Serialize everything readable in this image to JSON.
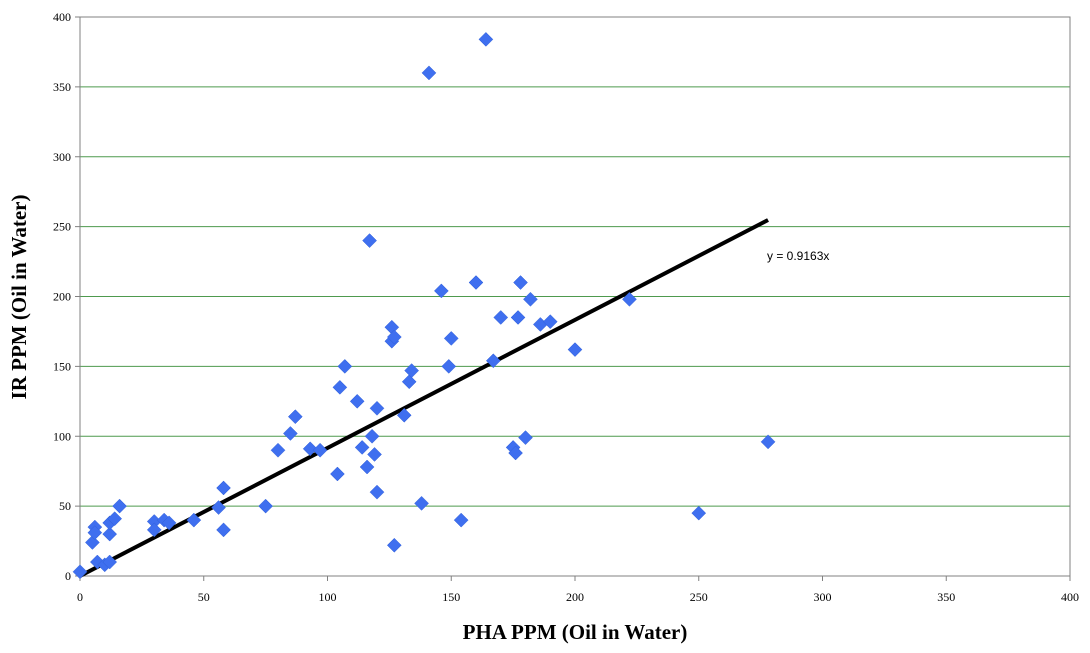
{
  "chart_data": {
    "type": "scatter",
    "title": "",
    "xlabel": "PHA PPM (Oil in Water)",
    "ylabel": "IR PPM (Oil in Water)",
    "xlim": [
      0,
      400
    ],
    "ylim": [
      0,
      400
    ],
    "x_ticks": [
      "0",
      "50",
      "100",
      "150",
      "200",
      "250",
      "300",
      "350",
      "400"
    ],
    "y_ticks": [
      "0",
      "50",
      "100",
      "150",
      "200",
      "250",
      "300",
      "350",
      "400"
    ],
    "grid": "horizontal",
    "marker": "diamond",
    "marker_color": "#3f6fef",
    "grid_color": "#4e9a4e",
    "points": [
      [
        0,
        3
      ],
      [
        5,
        24
      ],
      [
        6,
        35
      ],
      [
        6,
        31
      ],
      [
        7,
        10
      ],
      [
        10,
        8
      ],
      [
        12,
        10
      ],
      [
        12,
        30
      ],
      [
        12,
        38
      ],
      [
        14,
        41
      ],
      [
        16,
        50
      ],
      [
        30,
        39
      ],
      [
        30,
        33
      ],
      [
        34,
        40
      ],
      [
        36,
        38
      ],
      [
        46,
        40
      ],
      [
        56,
        49
      ],
      [
        58,
        63
      ],
      [
        58,
        33
      ],
      [
        75,
        50
      ],
      [
        80,
        90
      ],
      [
        85,
        102
      ],
      [
        87,
        114
      ],
      [
        93,
        91
      ],
      [
        97,
        90
      ],
      [
        104,
        73
      ],
      [
        105,
        135
      ],
      [
        107,
        150
      ],
      [
        112,
        125
      ],
      [
        114,
        92
      ],
      [
        116,
        78
      ],
      [
        117,
        240
      ],
      [
        118,
        100
      ],
      [
        119,
        87
      ],
      [
        120,
        120
      ],
      [
        120,
        60
      ],
      [
        126,
        178
      ],
      [
        126,
        168
      ],
      [
        127,
        171
      ],
      [
        127,
        22
      ],
      [
        131,
        115
      ],
      [
        133,
        139
      ],
      [
        134,
        147
      ],
      [
        138,
        52
      ],
      [
        141,
        360
      ],
      [
        146,
        204
      ],
      [
        149,
        150
      ],
      [
        150,
        170
      ],
      [
        154,
        40
      ],
      [
        160,
        210
      ],
      [
        164,
        384
      ],
      [
        167,
        154
      ],
      [
        170,
        185
      ],
      [
        175,
        92
      ],
      [
        176,
        88
      ],
      [
        177,
        185
      ],
      [
        178,
        210
      ],
      [
        180,
        99
      ],
      [
        182,
        198
      ],
      [
        186,
        180
      ],
      [
        190,
        182
      ],
      [
        200,
        162
      ],
      [
        222,
        198
      ],
      [
        250,
        45
      ],
      [
        278,
        96
      ]
    ],
    "trendline": {
      "type": "linear-through-origin",
      "slope": 0.9163,
      "x_range": [
        0,
        278
      ],
      "label": "y = 0.9163x",
      "color": "#000000"
    }
  }
}
